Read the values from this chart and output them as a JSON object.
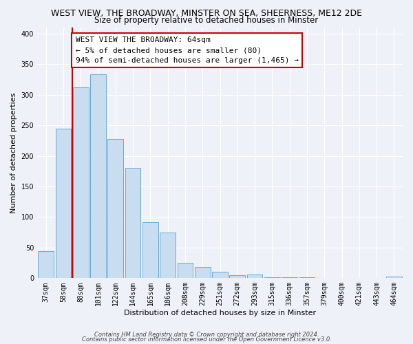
{
  "title": "WEST VIEW, THE BROADWAY, MINSTER ON SEA, SHEERNESS, ME12 2DE",
  "subtitle": "Size of property relative to detached houses in Minster",
  "xlabel": "Distribution of detached houses by size in Minster",
  "ylabel": "Number of detached properties",
  "bar_labels": [
    "37sqm",
    "58sqm",
    "80sqm",
    "101sqm",
    "122sqm",
    "144sqm",
    "165sqm",
    "186sqm",
    "208sqm",
    "229sqm",
    "251sqm",
    "272sqm",
    "293sqm",
    "315sqm",
    "336sqm",
    "357sqm",
    "379sqm",
    "400sqm",
    "421sqm",
    "443sqm",
    "464sqm"
  ],
  "bar_values": [
    44,
    245,
    312,
    333,
    228,
    180,
    91,
    75,
    25,
    18,
    10,
    5,
    6,
    2,
    2,
    1,
    0,
    0,
    0,
    0,
    3
  ],
  "bar_color": "#c8ddf0",
  "bar_edge_color": "#6aaad4",
  "subject_line_color": "#cc0000",
  "ylim": [
    0,
    410
  ],
  "yticks": [
    0,
    50,
    100,
    150,
    200,
    250,
    300,
    350,
    400
  ],
  "annotation_title": "WEST VIEW THE BROADWAY: 64sqm",
  "annotation_line1": "← 5% of detached houses are smaller (80)",
  "annotation_line2": "94% of semi-detached houses are larger (1,465) →",
  "annotation_box_color": "#ffffff",
  "annotation_box_edge": "#cc0000",
  "footer_line1": "Contains HM Land Registry data © Crown copyright and database right 2024.",
  "footer_line2": "Contains public sector information licensed under the Open Government Licence v3.0.",
  "background_color": "#eef2f8",
  "grid_color": "#ffffff",
  "title_fontsize": 9,
  "subtitle_fontsize": 8.5,
  "axis_label_fontsize": 8,
  "tick_fontsize": 7,
  "annotation_fontsize": 8,
  "footer_fontsize": 6
}
